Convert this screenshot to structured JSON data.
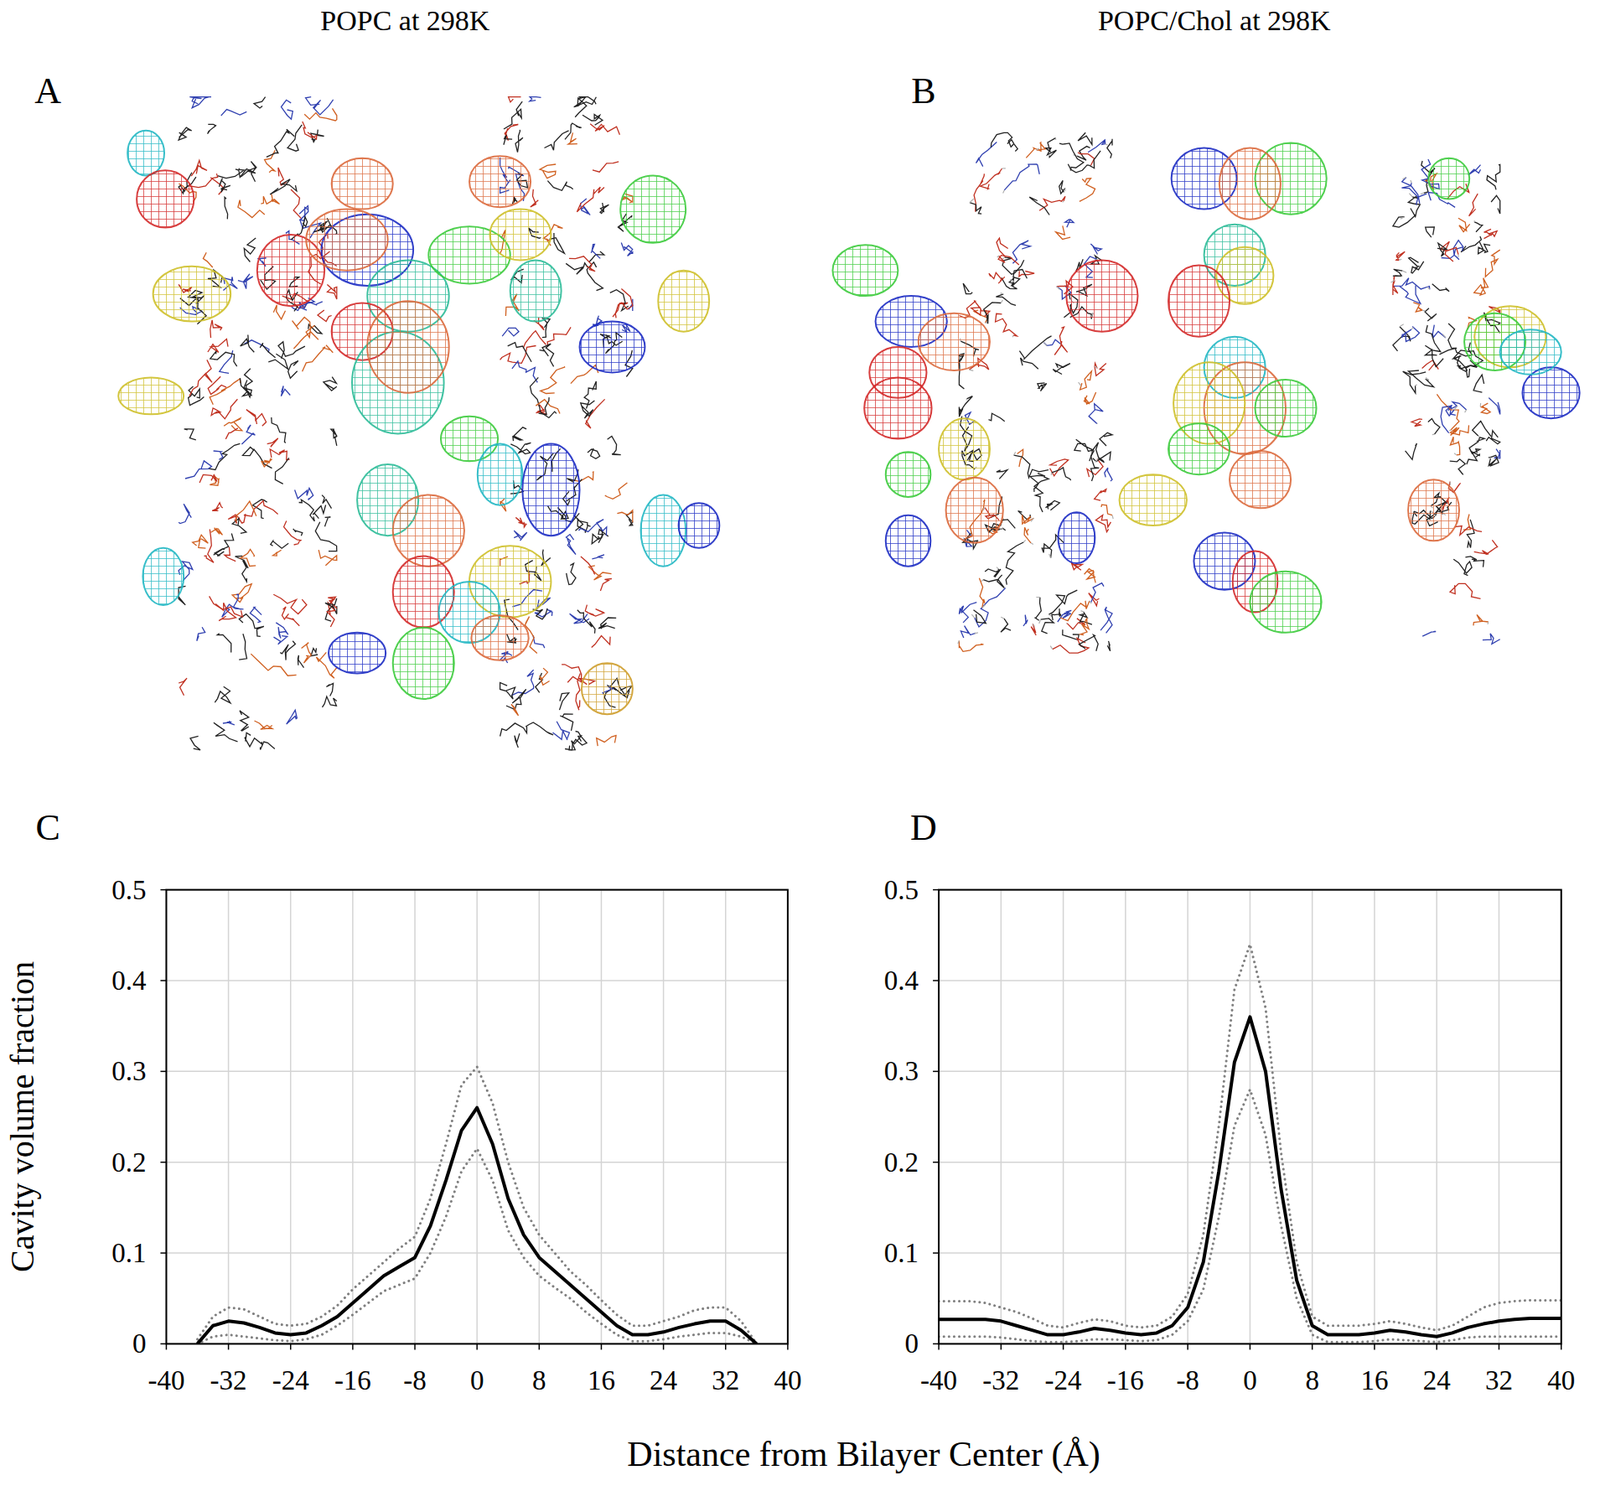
{
  "structures": [
    {
      "label": "A",
      "title": "POPC at 298K"
    },
    {
      "label": "B",
      "title": "POPC/Chol at 298K"
    }
  ],
  "chart_data": [
    {
      "type": "line",
      "label": "C",
      "ylabel": "Cavity volume fraction",
      "xlabel": "Distance from Bilayer Center (Å)",
      "xlim": [
        -40,
        40
      ],
      "ylim": [
        0,
        0.5
      ],
      "xticks": [
        -40,
        -32,
        -24,
        -16,
        -8,
        0,
        8,
        16,
        24,
        32,
        40
      ],
      "yticks": [
        0,
        0.1,
        0.2,
        0.3,
        0.4,
        0.5
      ],
      "grid": true,
      "x": [
        -36,
        -34,
        -32,
        -30,
        -28,
        -26,
        -24,
        -22,
        -20,
        -18,
        -16,
        -14,
        -12,
        -10,
        -8,
        -6,
        -4,
        -2,
        0,
        2,
        4,
        6,
        8,
        10,
        12,
        14,
        16,
        18,
        20,
        22,
        24,
        26,
        28,
        30,
        32,
        34,
        36
      ],
      "series": [
        {
          "color": "#000000",
          "line_style": "solid",
          "values": [
            0,
            0.02,
            0.025,
            0.023,
            0.018,
            0.012,
            0.01,
            0.012,
            0.02,
            0.03,
            0.045,
            0.06,
            0.075,
            0.085,
            0.095,
            0.13,
            0.18,
            0.235,
            0.26,
            0.22,
            0.16,
            0.12,
            0.095,
            0.08,
            0.065,
            0.05,
            0.035,
            0.02,
            0.01,
            0.01,
            0.013,
            0.018,
            0.022,
            0.025,
            0.025,
            0.015,
            0
          ]
        },
        {
          "color": "#808080",
          "line_style": "dotted",
          "values": [
            0.005,
            0.03,
            0.04,
            0.038,
            0.03,
            0.022,
            0.02,
            0.022,
            0.03,
            0.042,
            0.06,
            0.075,
            0.09,
            0.105,
            0.118,
            0.16,
            0.22,
            0.285,
            0.305,
            0.265,
            0.2,
            0.15,
            0.12,
            0.1,
            0.08,
            0.065,
            0.048,
            0.032,
            0.02,
            0.02,
            0.025,
            0.03,
            0.037,
            0.04,
            0.04,
            0.025,
            0
          ]
        },
        {
          "color": "#808080",
          "line_style": "dotted",
          "values": [
            0,
            0.008,
            0.01,
            0.008,
            0.006,
            0.004,
            0.003,
            0.005,
            0.01,
            0.02,
            0.032,
            0.045,
            0.058,
            0.065,
            0.072,
            0.1,
            0.14,
            0.19,
            0.215,
            0.18,
            0.125,
            0.095,
            0.075,
            0.062,
            0.05,
            0.035,
            0.022,
            0.01,
            0.003,
            0.003,
            0.005,
            0.008,
            0.01,
            0.012,
            0.012,
            0.008,
            0
          ]
        }
      ]
    },
    {
      "type": "line",
      "label": "D",
      "xlim": [
        -40,
        40
      ],
      "ylim": [
        0,
        0.5
      ],
      "xticks": [
        -40,
        -32,
        -24,
        -16,
        -8,
        0,
        8,
        16,
        24,
        32,
        40
      ],
      "yticks": [
        0,
        0.1,
        0.2,
        0.3,
        0.4,
        0.5
      ],
      "grid": true,
      "x": [
        -40,
        -38,
        -36,
        -34,
        -32,
        -30,
        -28,
        -26,
        -24,
        -22,
        -20,
        -18,
        -16,
        -14,
        -12,
        -10,
        -8,
        -6,
        -4,
        -2,
        0,
        2,
        4,
        6,
        8,
        10,
        12,
        14,
        16,
        18,
        20,
        22,
        24,
        26,
        28,
        30,
        32,
        34,
        36,
        38,
        40
      ],
      "series": [
        {
          "color": "#000000",
          "line_style": "solid",
          "values": [
            0.027,
            0.027,
            0.027,
            0.027,
            0.025,
            0.02,
            0.015,
            0.01,
            0.01,
            0.013,
            0.017,
            0.015,
            0.012,
            0.01,
            0.012,
            0.02,
            0.04,
            0.09,
            0.19,
            0.31,
            0.36,
            0.3,
            0.17,
            0.07,
            0.02,
            0.01,
            0.01,
            0.01,
            0.012,
            0.015,
            0.013,
            0.01,
            0.008,
            0.012,
            0.018,
            0.022,
            0.025,
            0.027,
            0.028,
            0.028,
            0.028
          ]
        },
        {
          "color": "#808080",
          "line_style": "dotted",
          "values": [
            0.047,
            0.047,
            0.047,
            0.045,
            0.04,
            0.035,
            0.028,
            0.02,
            0.018,
            0.023,
            0.027,
            0.025,
            0.02,
            0.018,
            0.02,
            0.03,
            0.055,
            0.12,
            0.24,
            0.39,
            0.44,
            0.37,
            0.21,
            0.09,
            0.03,
            0.02,
            0.02,
            0.02,
            0.022,
            0.025,
            0.022,
            0.018,
            0.015,
            0.02,
            0.03,
            0.04,
            0.045,
            0.047,
            0.048,
            0.048,
            0.048
          ]
        },
        {
          "color": "#808080",
          "line_style": "dotted",
          "values": [
            0.008,
            0.008,
            0.008,
            0.008,
            0.007,
            0.005,
            0.003,
            0.002,
            0.002,
            0.003,
            0.005,
            0.005,
            0.004,
            0.003,
            0.004,
            0.01,
            0.025,
            0.06,
            0.14,
            0.24,
            0.28,
            0.23,
            0.13,
            0.05,
            0.01,
            0.002,
            0.002,
            0.002,
            0.003,
            0.005,
            0.004,
            0.003,
            0.002,
            0.004,
            0.007,
            0.008,
            0.008,
            0.008,
            0.008,
            0.008,
            0.008
          ]
        }
      ]
    }
  ]
}
